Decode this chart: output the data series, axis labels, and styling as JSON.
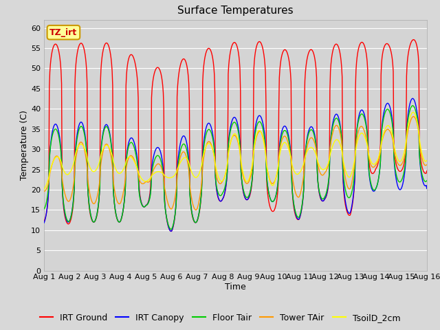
{
  "title": "Surface Temperatures",
  "xlabel": "Time",
  "ylabel": "Temperature (C)",
  "ylim": [
    0,
    62
  ],
  "yticks": [
    0,
    5,
    10,
    15,
    20,
    25,
    30,
    35,
    40,
    45,
    50,
    55,
    60
  ],
  "num_days": 16,
  "x_tick_labels": [
    "Aug 1",
    "Aug 2",
    "Aug 3",
    "Aug 4",
    "Aug 5",
    "Aug 6",
    "Aug 7",
    "Aug 8",
    "Aug 9",
    "Aug 10",
    "Aug 11",
    "Aug 12",
    "Aug 13",
    "Aug 14",
    "Aug 15",
    "Aug 16"
  ],
  "series": {
    "IRT Ground": {
      "color": "#ff0000",
      "peaks": [
        56,
        56,
        56.5,
        56,
        50,
        50.5,
        54.5,
        55.5,
        57.5,
        55.5,
        53.5,
        56,
        56,
        57,
        55,
        59.5
      ],
      "troughs": [
        12,
        11.5,
        12,
        12,
        16,
        9.5,
        12,
        17.5,
        17.5,
        14.5,
        12.5,
        17.5,
        13.5,
        25,
        24.5,
        24
      ]
    },
    "IRT Canopy": {
      "color": "#0000ff",
      "peaks": [
        36,
        36.5,
        37,
        35,
        30,
        31,
        36,
        37,
        39,
        37.5,
        33.5,
        38,
        39.5,
        40,
        43,
        42
      ],
      "troughs": [
        11.5,
        12,
        12,
        12,
        16,
        9.5,
        12,
        17.5,
        17.5,
        17,
        12.5,
        17.5,
        14,
        20,
        20,
        21
      ]
    },
    "Floor Tair": {
      "color": "#00cc00",
      "peaks": [
        35,
        35,
        36.5,
        34.5,
        28,
        29,
        34,
        36,
        37.5,
        36,
        33,
        37,
        38.5,
        39,
        41,
        40.5
      ],
      "troughs": [
        15,
        12,
        12,
        12,
        16,
        10,
        12,
        19,
        18,
        17,
        13,
        18,
        18,
        20,
        22,
        22
      ]
    },
    "Tower TAir": {
      "color": "#ff9900",
      "peaks": [
        25,
        32,
        31.5,
        31,
        25,
        28,
        31,
        33,
        34,
        35,
        31,
        35,
        37,
        34,
        36,
        40.5
      ],
      "troughs": [
        19.5,
        17,
        16.5,
        16.5,
        22,
        15,
        15,
        22,
        21.5,
        21.5,
        18,
        24,
        20,
        26,
        26,
        26
      ]
    },
    "TsoilD_2cm": {
      "color": "#ffff00",
      "peaks": [
        25,
        31.5,
        31,
        31,
        24,
        25,
        31,
        32,
        36,
        33,
        30,
        31,
        34,
        34,
        38,
        40.5
      ],
      "troughs": [
        20,
        24,
        24.5,
        24,
        22,
        23,
        23,
        22,
        22,
        21,
        24,
        25,
        23,
        26.5,
        27,
        27
      ]
    }
  },
  "annotation_text": "TZ_irt",
  "annotation_color": "#cc0000",
  "annotation_bg": "#ffff99",
  "annotation_border": "#cc9900",
  "fig_facecolor": "#d8d8d8",
  "plot_bg_color": "#d4d4d4",
  "grid_color": "#ffffff",
  "title_fontsize": 11,
  "axis_label_fontsize": 9,
  "tick_fontsize": 8,
  "legend_fontsize": 9
}
